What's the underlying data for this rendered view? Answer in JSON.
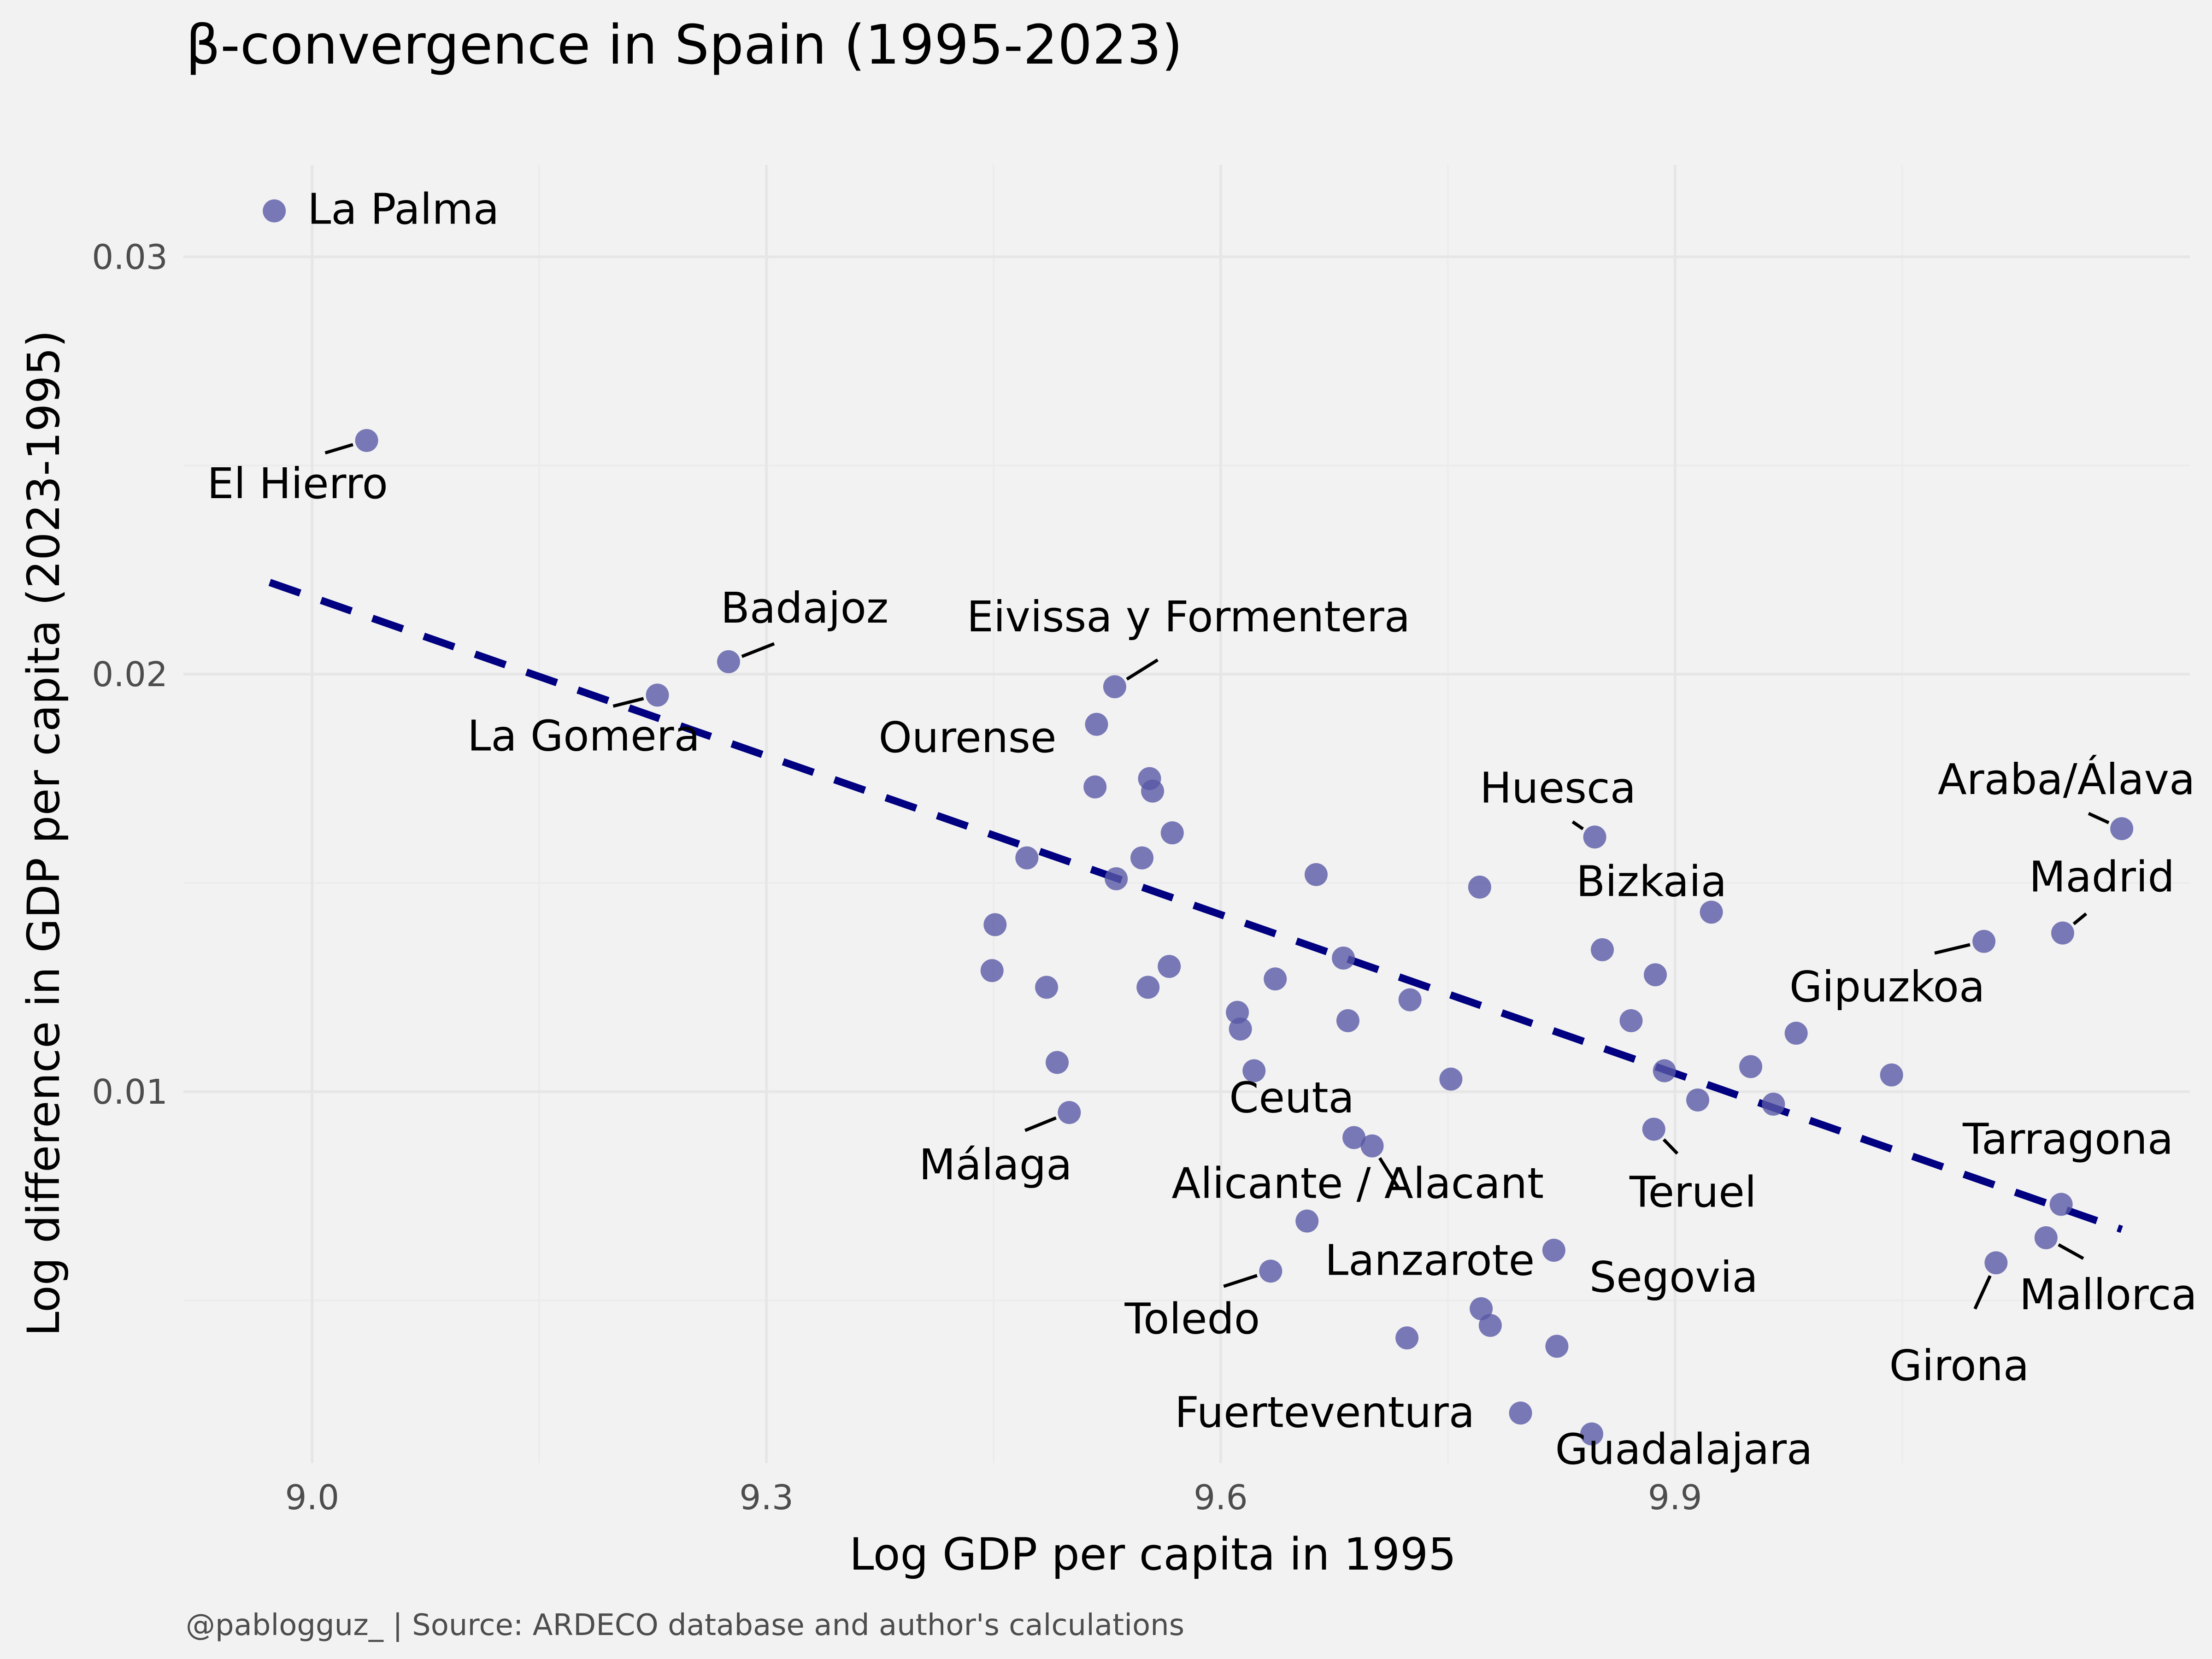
{
  "chart_data": {
    "type": "scatter",
    "title": "β-convergence in Spain (1995-2023)",
    "xlabel": "Log GDP per capita in 1995",
    "ylabel": "Log difference in GDP per capita (2023-1995)",
    "caption": "@pablogguz_ | Source: ARDECO database and author's calculations",
    "xlim": [
      8.915,
      10.24
    ],
    "ylim": [
      0.0011,
      0.0322
    ],
    "x_ticks": [
      9.0,
      9.3,
      9.6,
      9.9
    ],
    "x_tick_labels": [
      "9.0",
      "9.3",
      "9.6",
      "9.9"
    ],
    "y_ticks": [
      0.01,
      0.02,
      0.03
    ],
    "y_tick_labels": [
      "0.01",
      "0.02",
      "0.03"
    ],
    "grid": true,
    "point_color": "#5959a6",
    "trend_color": "#000080",
    "trend_line": {
      "x": [
        8.972,
        10.195
      ],
      "y": [
        0.0222,
        0.0067
      ],
      "style": "dashed"
    },
    "labeled_points": [
      {
        "name": "La Palma",
        "x": 8.975,
        "y": 0.0311
      },
      {
        "name": "El Hierro",
        "x": 9.036,
        "y": 0.0256
      },
      {
        "name": "La Gomera",
        "x": 9.228,
        "y": 0.0195
      },
      {
        "name": "Badajoz",
        "x": 9.275,
        "y": 0.0203
      },
      {
        "name": "Eivissa y Formentera",
        "x": 9.53,
        "y": 0.0197
      },
      {
        "name": "Ourense",
        "x": 9.518,
        "y": 0.0188
      },
      {
        "name": "Málaga",
        "x": 9.5,
        "y": 0.0095
      },
      {
        "name": "Huesca",
        "x": 9.847,
        "y": 0.0161
      },
      {
        "name": "Bizkaia",
        "x": 9.924,
        "y": 0.0143
      },
      {
        "name": "Araba/Álava",
        "x": 10.195,
        "y": 0.0163
      },
      {
        "name": "Madrid",
        "x": 10.156,
        "y": 0.0138
      },
      {
        "name": "Gipuzkoa",
        "x": 10.104,
        "y": 0.0136
      },
      {
        "name": "Ceuta",
        "x": 9.688,
        "y": 0.0089
      },
      {
        "name": "Alicante / Alacant",
        "x": 9.657,
        "y": 0.0069
      },
      {
        "name": "Lanzarote",
        "x": 9.7,
        "y": 0.0087
      },
      {
        "name": "Teruel",
        "x": 9.886,
        "y": 0.0091
      },
      {
        "name": "Tarragona",
        "x": 10.155,
        "y": 0.0073
      },
      {
        "name": "Segovia",
        "x": 9.82,
        "y": 0.0062
      },
      {
        "name": "Mallorca",
        "x": 10.145,
        "y": 0.0065
      },
      {
        "name": "Girona",
        "x": 10.112,
        "y": 0.0059
      },
      {
        "name": "Toledo",
        "x": 9.633,
        "y": 0.0057
      },
      {
        "name": "Fuerteventura",
        "x": 9.798,
        "y": 0.0023
      },
      {
        "name": "Guadalajara",
        "x": 9.845,
        "y": 0.0018
      }
    ],
    "points": [
      {
        "x": 9.553,
        "y": 0.0175
      },
      {
        "x": 9.555,
        "y": 0.0172
      },
      {
        "x": 9.517,
        "y": 0.0173
      },
      {
        "x": 9.568,
        "y": 0.0162
      },
      {
        "x": 9.548,
        "y": 0.0156
      },
      {
        "x": 9.472,
        "y": 0.0156
      },
      {
        "x": 9.531,
        "y": 0.0151
      },
      {
        "x": 9.663,
        "y": 0.0152
      },
      {
        "x": 9.771,
        "y": 0.0149
      },
      {
        "x": 9.852,
        "y": 0.0134
      },
      {
        "x": 9.887,
        "y": 0.0128
      },
      {
        "x": 9.451,
        "y": 0.014
      },
      {
        "x": 9.449,
        "y": 0.0129
      },
      {
        "x": 9.485,
        "y": 0.0125
      },
      {
        "x": 9.566,
        "y": 0.013
      },
      {
        "x": 9.552,
        "y": 0.0125
      },
      {
        "x": 9.681,
        "y": 0.0132
      },
      {
        "x": 9.636,
        "y": 0.0127
      },
      {
        "x": 9.611,
        "y": 0.0119
      },
      {
        "x": 9.613,
        "y": 0.0115
      },
      {
        "x": 9.684,
        "y": 0.0117
      },
      {
        "x": 9.725,
        "y": 0.0122
      },
      {
        "x": 9.871,
        "y": 0.0117
      },
      {
        "x": 9.98,
        "y": 0.0114
      },
      {
        "x": 9.492,
        "y": 0.0107
      },
      {
        "x": 9.622,
        "y": 0.0105
      },
      {
        "x": 9.752,
        "y": 0.0103
      },
      {
        "x": 9.893,
        "y": 0.0105
      },
      {
        "x": 9.95,
        "y": 0.0106
      },
      {
        "x": 10.043,
        "y": 0.0104
      },
      {
        "x": 9.915,
        "y": 0.0098
      },
      {
        "x": 9.965,
        "y": 0.0097
      },
      {
        "x": 9.772,
        "y": 0.0048
      },
      {
        "x": 9.778,
        "y": 0.0044
      },
      {
        "x": 9.723,
        "y": 0.0041
      },
      {
        "x": 9.822,
        "y": 0.0039
      }
    ]
  }
}
